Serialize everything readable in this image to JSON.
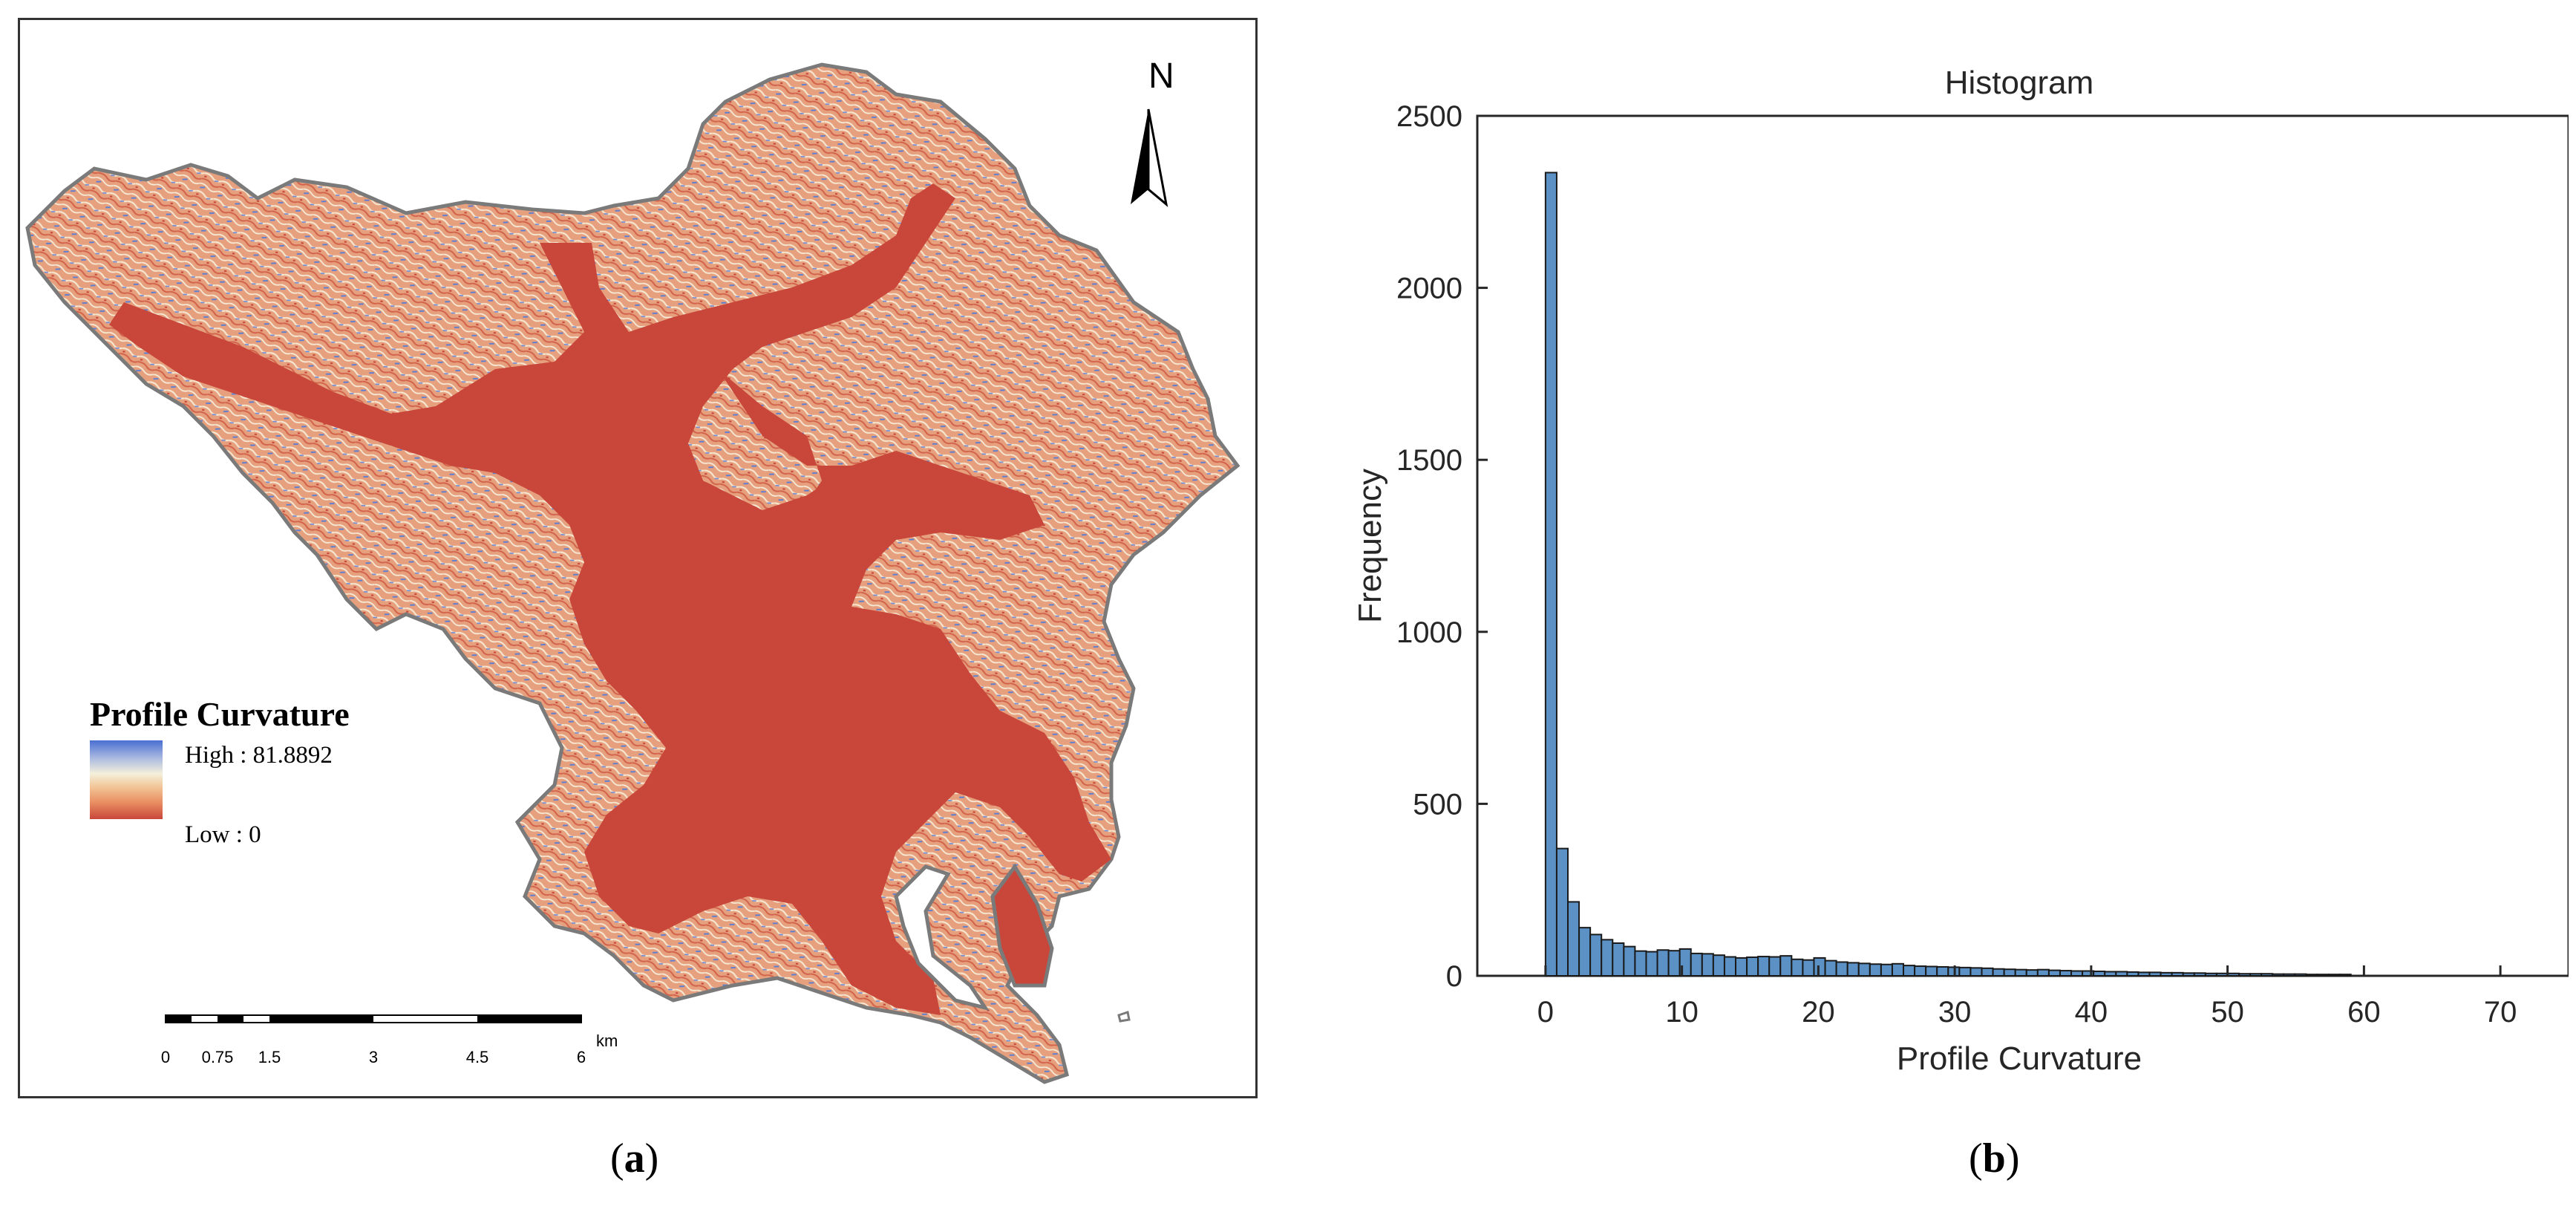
{
  "panels": {
    "a": {
      "label_open": "(",
      "label_letter": "a",
      "label_close": ")"
    },
    "b": {
      "label_open": "(",
      "label_letter": "b",
      "label_close": ")"
    }
  },
  "map": {
    "north_label": "N",
    "legend": {
      "title": "Profile Curvature",
      "high_label": "High : 81.8892",
      "low_label": "Low : 0",
      "colors": [
        "#4a6fd2",
        "#f4f0dc",
        "#c8463a"
      ]
    },
    "scale_bar": {
      "unit": "km",
      "ticks": [
        "0",
        "0.75",
        "1.5",
        "3",
        "4.5",
        "6"
      ]
    },
    "colors": {
      "valley": "#c8463a",
      "terrain": "#e39a78",
      "outline": "#8a8a8a"
    }
  },
  "chart_data": {
    "type": "bar",
    "title": "Histogram",
    "xlabel": "Profile Curvature",
    "ylabel": "Frequency",
    "xlim": [
      -5,
      75
    ],
    "ylim": [
      0,
      2500
    ],
    "xticks": [
      0,
      10,
      20,
      30,
      40,
      50,
      60,
      70
    ],
    "yticks": [
      0,
      500,
      1000,
      1500,
      2000,
      2500
    ],
    "bin_width": 0.82,
    "bin_start": 0,
    "values": [
      2335,
      370,
      215,
      140,
      120,
      105,
      95,
      85,
      72,
      70,
      75,
      73,
      78,
      65,
      64,
      60,
      55,
      52,
      54,
      56,
      55,
      58,
      48,
      46,
      52,
      44,
      40,
      38,
      36,
      34,
      33,
      35,
      30,
      28,
      27,
      26,
      25,
      24,
      23,
      22,
      20,
      19,
      18,
      17,
      18,
      16,
      15,
      14,
      14,
      13,
      12,
      12,
      11,
      10,
      10,
      9,
      9,
      8,
      8,
      7,
      7,
      7,
      6,
      6,
      6,
      5,
      5,
      5,
      4,
      4,
      4,
      4
    ],
    "bar_color": "#5b91c4",
    "edge_color": "#1a1a1a",
    "grid": false,
    "legend": "none"
  }
}
